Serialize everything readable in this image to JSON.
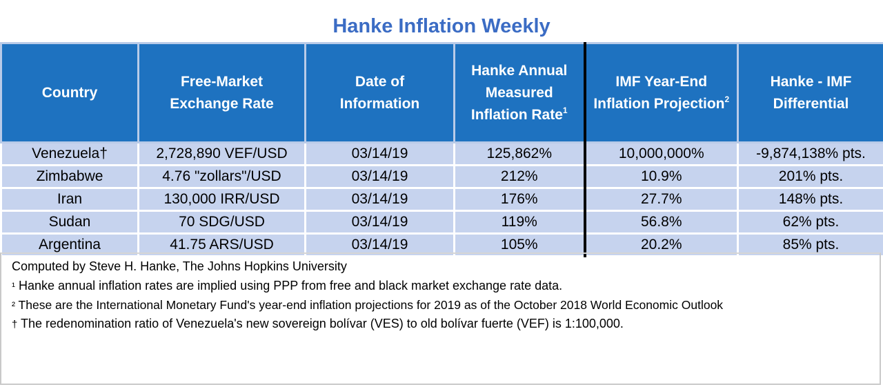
{
  "title": "Hanke Inflation Weekly",
  "headers": {
    "country": "Country",
    "exchange": [
      "Free-Market",
      "Exchange Rate"
    ],
    "date": [
      "Date of",
      "Information"
    ],
    "hanke": [
      "Hanke Annual",
      "Measured",
      "Inflation Rate"
    ],
    "hanke_note": "1",
    "imf": [
      "IMF Year-End",
      "Inflation Projection"
    ],
    "imf_note": "2",
    "diff": [
      "Hanke - IMF",
      "Differential"
    ]
  },
  "rows": [
    {
      "country": "Venezuela†",
      "exchange": "2,728,890 VEF/USD",
      "date": "03/14/19",
      "hanke": "125,862%",
      "imf": "10,000,000%",
      "diff": "-9,874,138% pts."
    },
    {
      "country": "Zimbabwe",
      "exchange": "4.76 \"zollars\"/USD",
      "date": "03/14/19",
      "hanke": "212%",
      "imf": "10.9%",
      "diff": "201% pts."
    },
    {
      "country": "Iran",
      "exchange": "130,000 IRR/USD",
      "date": "03/14/19",
      "hanke": "176%",
      "imf": "27.7%",
      "diff": "148% pts."
    },
    {
      "country": "Sudan",
      "exchange": "70 SDG/USD",
      "date": "03/14/19",
      "hanke": "119%",
      "imf": "56.8%",
      "diff": "62% pts."
    },
    {
      "country": "Argentina",
      "exchange": "41.75 ARS/USD",
      "date": "03/14/19",
      "hanke": "105%",
      "imf": "20.2%",
      "diff": "85% pts."
    }
  ],
  "notes": {
    "credit": "Computed by Steve H. Hanke, The Johns Hopkins University",
    "note1_mark": "¹",
    "note1": " Hanke annual inflation rates are implied using PPP from free and black market exchange rate data.",
    "note2_mark": "²",
    "note2": " These are the International Monetary Fund's year-end inflation projections for 2019 as of the October 2018 World Economic Outlook",
    "note3_mark": "†",
    "note3": " The redenomination ratio of Venezuela's new sovereign bolívar (VES) to old bolívar fuerte (VEF) is 1:100,000."
  }
}
